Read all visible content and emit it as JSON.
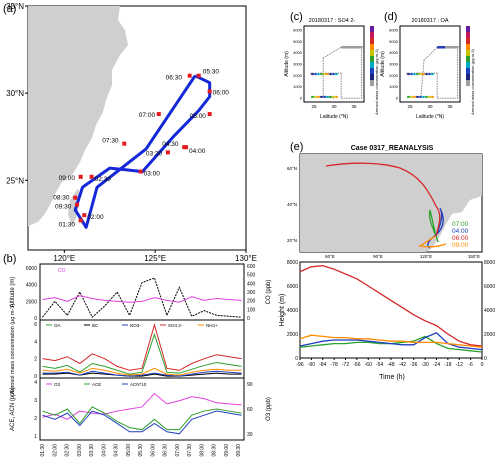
{
  "colors": {
    "track": "#1428d8",
    "marker": "#e41a1c",
    "land": "#cfcfcf",
    "co": "#e040e0",
    "alt": "#000000",
    "oa": "#2ca02c",
    "bc": "#000000",
    "no3": "#1f3fbf",
    "so4": "#d62728",
    "nh4": "#ff8c00",
    "o3": "#e040e0",
    "ace": "#2ca02c",
    "acn": "#1f3fbf",
    "t07": "#2ca02c",
    "t04": "#1f3fbf",
    "t06": "#d62728",
    "t09": "#ff8c00"
  },
  "panel_a": {
    "label": "(a)",
    "lat_ticks": [
      "35°N",
      "30°N",
      "25°N"
    ],
    "lon_ticks": [
      "120°E",
      "125°E",
      "130°E"
    ],
    "time_labels": [
      "05:30",
      "06:00",
      "06:30",
      "05:00",
      "07:00",
      "04:30",
      "04:00",
      "03:30",
      "07:30",
      "03:00",
      "02:30",
      "09:00",
      "08:30",
      "09:30",
      "02:00",
      "01:30"
    ]
  },
  "panel_b": {
    "label": "(b)",
    "top": {
      "legend": "CO",
      "ylabel_left": "Altitude (m)",
      "ylabel_right": "CO (ppb)",
      "left_ticks": [
        "6000",
        "4000",
        "2000",
        "0"
      ],
      "right_ticks": [
        "600",
        "500",
        "400",
        "300",
        "200",
        "100",
        "0"
      ]
    },
    "mid": {
      "legend": [
        "OA",
        "BC",
        "NO3-",
        "SO4 2-",
        "NH4+"
      ],
      "ylabel": "Aerosol mass concentration (μg m-3)",
      "ticks": [
        "6",
        "4",
        "2",
        "0"
      ]
    },
    "bottom": {
      "legend": [
        "O3",
        "ACE",
        "ACN*10"
      ],
      "ylabel_left": "ACE, ACN (ppb)",
      "ylabel_right": "O3 (ppb)",
      "left_ticks": [
        "4",
        "3",
        "2",
        "1"
      ],
      "right_ticks": [
        "90",
        "60",
        "30"
      ]
    },
    "time_ticks": [
      "01:30",
      "02:00",
      "02:30",
      "03:00",
      "03:30",
      "04:00",
      "04:30",
      "05:00",
      "05:30",
      "06:00",
      "06:30",
      "07:00",
      "07:30",
      "08:00",
      "08:30",
      "09:00",
      "09:30"
    ]
  },
  "panel_c": {
    "label": "(c)",
    "title": "20180317 : SO4 2-",
    "xlabel": "Latitude (°N)",
    "ylabel": "Altitude (m)",
    "cbar_label": "Aerosol mass concentration (μg m-3)",
    "y_ticks": [
      "6000",
      "5000",
      "4000",
      "3000",
      "2000",
      "1000",
      "0"
    ],
    "x_ticks": [
      "25",
      "30",
      "35"
    ]
  },
  "panel_d": {
    "label": "(d)",
    "title": "20180317 : OA",
    "xlabel": "Latitude (°N)",
    "ylabel": "Altitude (m)",
    "cbar_label": "Aerosol mass concentration (μg m-3)",
    "y_ticks": [
      "6000",
      "5000",
      "4000",
      "3000",
      "2000",
      "1000",
      "0"
    ],
    "x_ticks": [
      "25",
      "30",
      "35"
    ]
  },
  "panel_e": {
    "label": "(e)",
    "title": "Case 0317_REANALYSIS",
    "map_lat_ticks": [
      "60°N",
      "40°N",
      "20°N"
    ],
    "map_lon_ticks": [
      "60°E",
      "90°E",
      "120°E",
      "150°E"
    ],
    "legend": [
      "07:00",
      "04:00",
      "06:00",
      "09:00"
    ],
    "ylabel": "Height (m)",
    "xlabel": "Time (h)",
    "y_ticks": [
      "8000",
      "6000",
      "4000",
      "2000",
      "0"
    ]
  },
  "chart_data": [
    {
      "type": "line",
      "name": "flight track map",
      "x_label": "Longitude (°E)",
      "y_label": "Latitude (°N)",
      "xlim": [
        118,
        130
      ],
      "ylim": [
        21,
        35
      ],
      "track": [
        [
          127.2,
          31.0
        ],
        [
          128.0,
          30.6
        ],
        [
          128.0,
          29.8
        ],
        [
          127.4,
          29.0
        ],
        [
          126.0,
          27.5
        ],
        [
          124.3,
          25.5
        ],
        [
          122.5,
          25.7
        ],
        [
          121.0,
          24.6
        ],
        [
          120.6,
          23.3
        ],
        [
          121.2,
          22.3
        ],
        [
          121.8,
          24.6
        ],
        [
          124.5,
          26.8
        ],
        [
          127.2,
          31.0
        ]
      ],
      "markers": [
        {
          "label": "05:30",
          "lon": 127.4,
          "lat": 31.0
        },
        {
          "label": "06:00",
          "lon": 128.0,
          "lat": 30.1
        },
        {
          "label": "06:30",
          "lon": 126.9,
          "lat": 31.0
        },
        {
          "label": "05:00",
          "lon": 128.0,
          "lat": 28.8
        },
        {
          "label": "07:00",
          "lon": 125.2,
          "lat": 28.8
        },
        {
          "label": "04:30",
          "lon": 126.6,
          "lat": 26.9
        },
        {
          "label": "04:00",
          "lon": 126.7,
          "lat": 26.9
        },
        {
          "label": "03:30",
          "lon": 125.7,
          "lat": 26.6
        },
        {
          "label": "07:30",
          "lon": 123.3,
          "lat": 27.1
        },
        {
          "label": "03:00",
          "lon": 124.2,
          "lat": 25.5
        },
        {
          "label": "02:30",
          "lon": 121.5,
          "lat": 25.2
        },
        {
          "label": "09:00",
          "lon": 120.9,
          "lat": 25.2
        },
        {
          "label": "08:30",
          "lon": 120.6,
          "lat": 24.0
        },
        {
          "label": "09:30",
          "lon": 120.7,
          "lat": 23.6
        },
        {
          "label": "02:00",
          "lon": 121.1,
          "lat": 23.0
        },
        {
          "label": "01:30",
          "lon": 120.9,
          "lat": 22.7
        }
      ]
    },
    {
      "type": "line",
      "name": "time series",
      "x": [
        1.5,
        2,
        2.5,
        3,
        3.5,
        4,
        4.5,
        5,
        5.5,
        6,
        6.5,
        7,
        7.5,
        8,
        8.5,
        9,
        9.5
      ],
      "series": [
        {
          "name": "Altitude",
          "values": [
            300,
            2000,
            500,
            3000,
            300,
            1500,
            3000,
            500,
            4000,
            4500,
            500,
            3500,
            400,
            1000,
            500,
            400,
            300
          ]
        },
        {
          "name": "CO",
          "values": [
            220,
            240,
            200,
            260,
            230,
            210,
            200,
            190,
            200,
            240,
            210,
            190,
            250,
            210,
            230,
            220,
            210
          ]
        },
        {
          "name": "OA",
          "values": [
            1.2,
            1.0,
            1.3,
            0.6,
            1.5,
            1.2,
            0.8,
            0.4,
            0.6,
            4.5,
            0.6,
            0.5,
            0.9,
            1.3,
            1.6,
            1.4,
            1.2
          ]
        },
        {
          "name": "BC",
          "values": [
            0.4,
            0.4,
            0.5,
            0.3,
            0.5,
            0.4,
            0.3,
            0.2,
            0.2,
            0.4,
            0.2,
            0.2,
            0.3,
            0.4,
            0.5,
            0.4,
            0.4
          ]
        },
        {
          "name": "NO3-",
          "values": [
            0.5,
            0.5,
            0.6,
            0.3,
            0.7,
            0.5,
            0.3,
            0.2,
            0.3,
            0.5,
            0.3,
            0.2,
            0.4,
            0.6,
            0.7,
            0.6,
            0.5
          ]
        },
        {
          "name": "SO4 2-",
          "values": [
            2.0,
            1.8,
            2.2,
            1.5,
            2.5,
            2.0,
            1.2,
            0.8,
            1.0,
            5.5,
            1.0,
            0.8,
            1.5,
            2.0,
            2.4,
            2.2,
            2.0
          ]
        },
        {
          "name": "NH4+",
          "values": [
            0.8,
            0.7,
            0.9,
            0.5,
            1.0,
            0.8,
            0.5,
            0.3,
            0.4,
            1.0,
            0.4,
            0.3,
            0.6,
            0.8,
            0.9,
            0.8,
            0.8
          ]
        },
        {
          "name": "O3",
          "values": [
            52,
            55,
            50,
            58,
            56,
            55,
            58,
            60,
            62,
            75,
            65,
            68,
            72,
            70,
            66,
            65,
            64
          ]
        },
        {
          "name": "ACE",
          "values": [
            2.4,
            2.2,
            2.5,
            1.8,
            2.6,
            2.3,
            1.9,
            1.6,
            1.5,
            2.0,
            1.5,
            1.5,
            2.2,
            2.4,
            2.5,
            2.4,
            2.3
          ]
        },
        {
          "name": "ACN*10",
          "values": [
            2.2,
            2.0,
            2.3,
            1.7,
            2.4,
            2.2,
            1.8,
            1.4,
            1.4,
            1.8,
            1.4,
            1.3,
            2.0,
            2.2,
            2.4,
            2.3,
            2.2
          ]
        }
      ]
    },
    {
      "type": "line",
      "name": "HYSPLIT back trajectories",
      "x": [
        -96,
        -90,
        -84,
        -78,
        -72,
        -66,
        -60,
        -54,
        -48,
        -42,
        -36,
        -30,
        -24,
        -18,
        -12,
        -6,
        0
      ],
      "x_ticks": [
        "-96",
        "-90",
        "-84",
        "-78",
        "-72",
        "-66",
        "-60",
        "-54",
        "-48",
        "-42",
        "-36",
        "-30",
        "-24",
        "-18",
        "-12",
        "-6",
        "0"
      ],
      "ylim": [
        0,
        8000
      ],
      "series": [
        {
          "name": "07:00",
          "values": [
            900,
            1000,
            1100,
            1200,
            1200,
            1300,
            1300,
            1200,
            1200,
            1300,
            1400,
            1800,
            1200,
            800,
            700,
            600,
            500
          ]
        },
        {
          "name": "04:00",
          "values": [
            1000,
            1200,
            1400,
            1500,
            1500,
            1500,
            1400,
            1300,
            1200,
            1100,
            1100,
            1700,
            2100,
            1200,
            900,
            800,
            700
          ]
        },
        {
          "name": "06:00",
          "values": [
            7200,
            7600,
            7700,
            7400,
            7000,
            6600,
            6000,
            5400,
            4800,
            4200,
            3600,
            3100,
            2700,
            2000,
            1400,
            1100,
            1000
          ]
        },
        {
          "name": "09:00",
          "values": [
            1600,
            1900,
            1800,
            1700,
            1700,
            1600,
            1600,
            1500,
            1400,
            1400,
            1300,
            1300,
            1300,
            1200,
            1100,
            1000,
            900
          ]
        }
      ]
    }
  ]
}
